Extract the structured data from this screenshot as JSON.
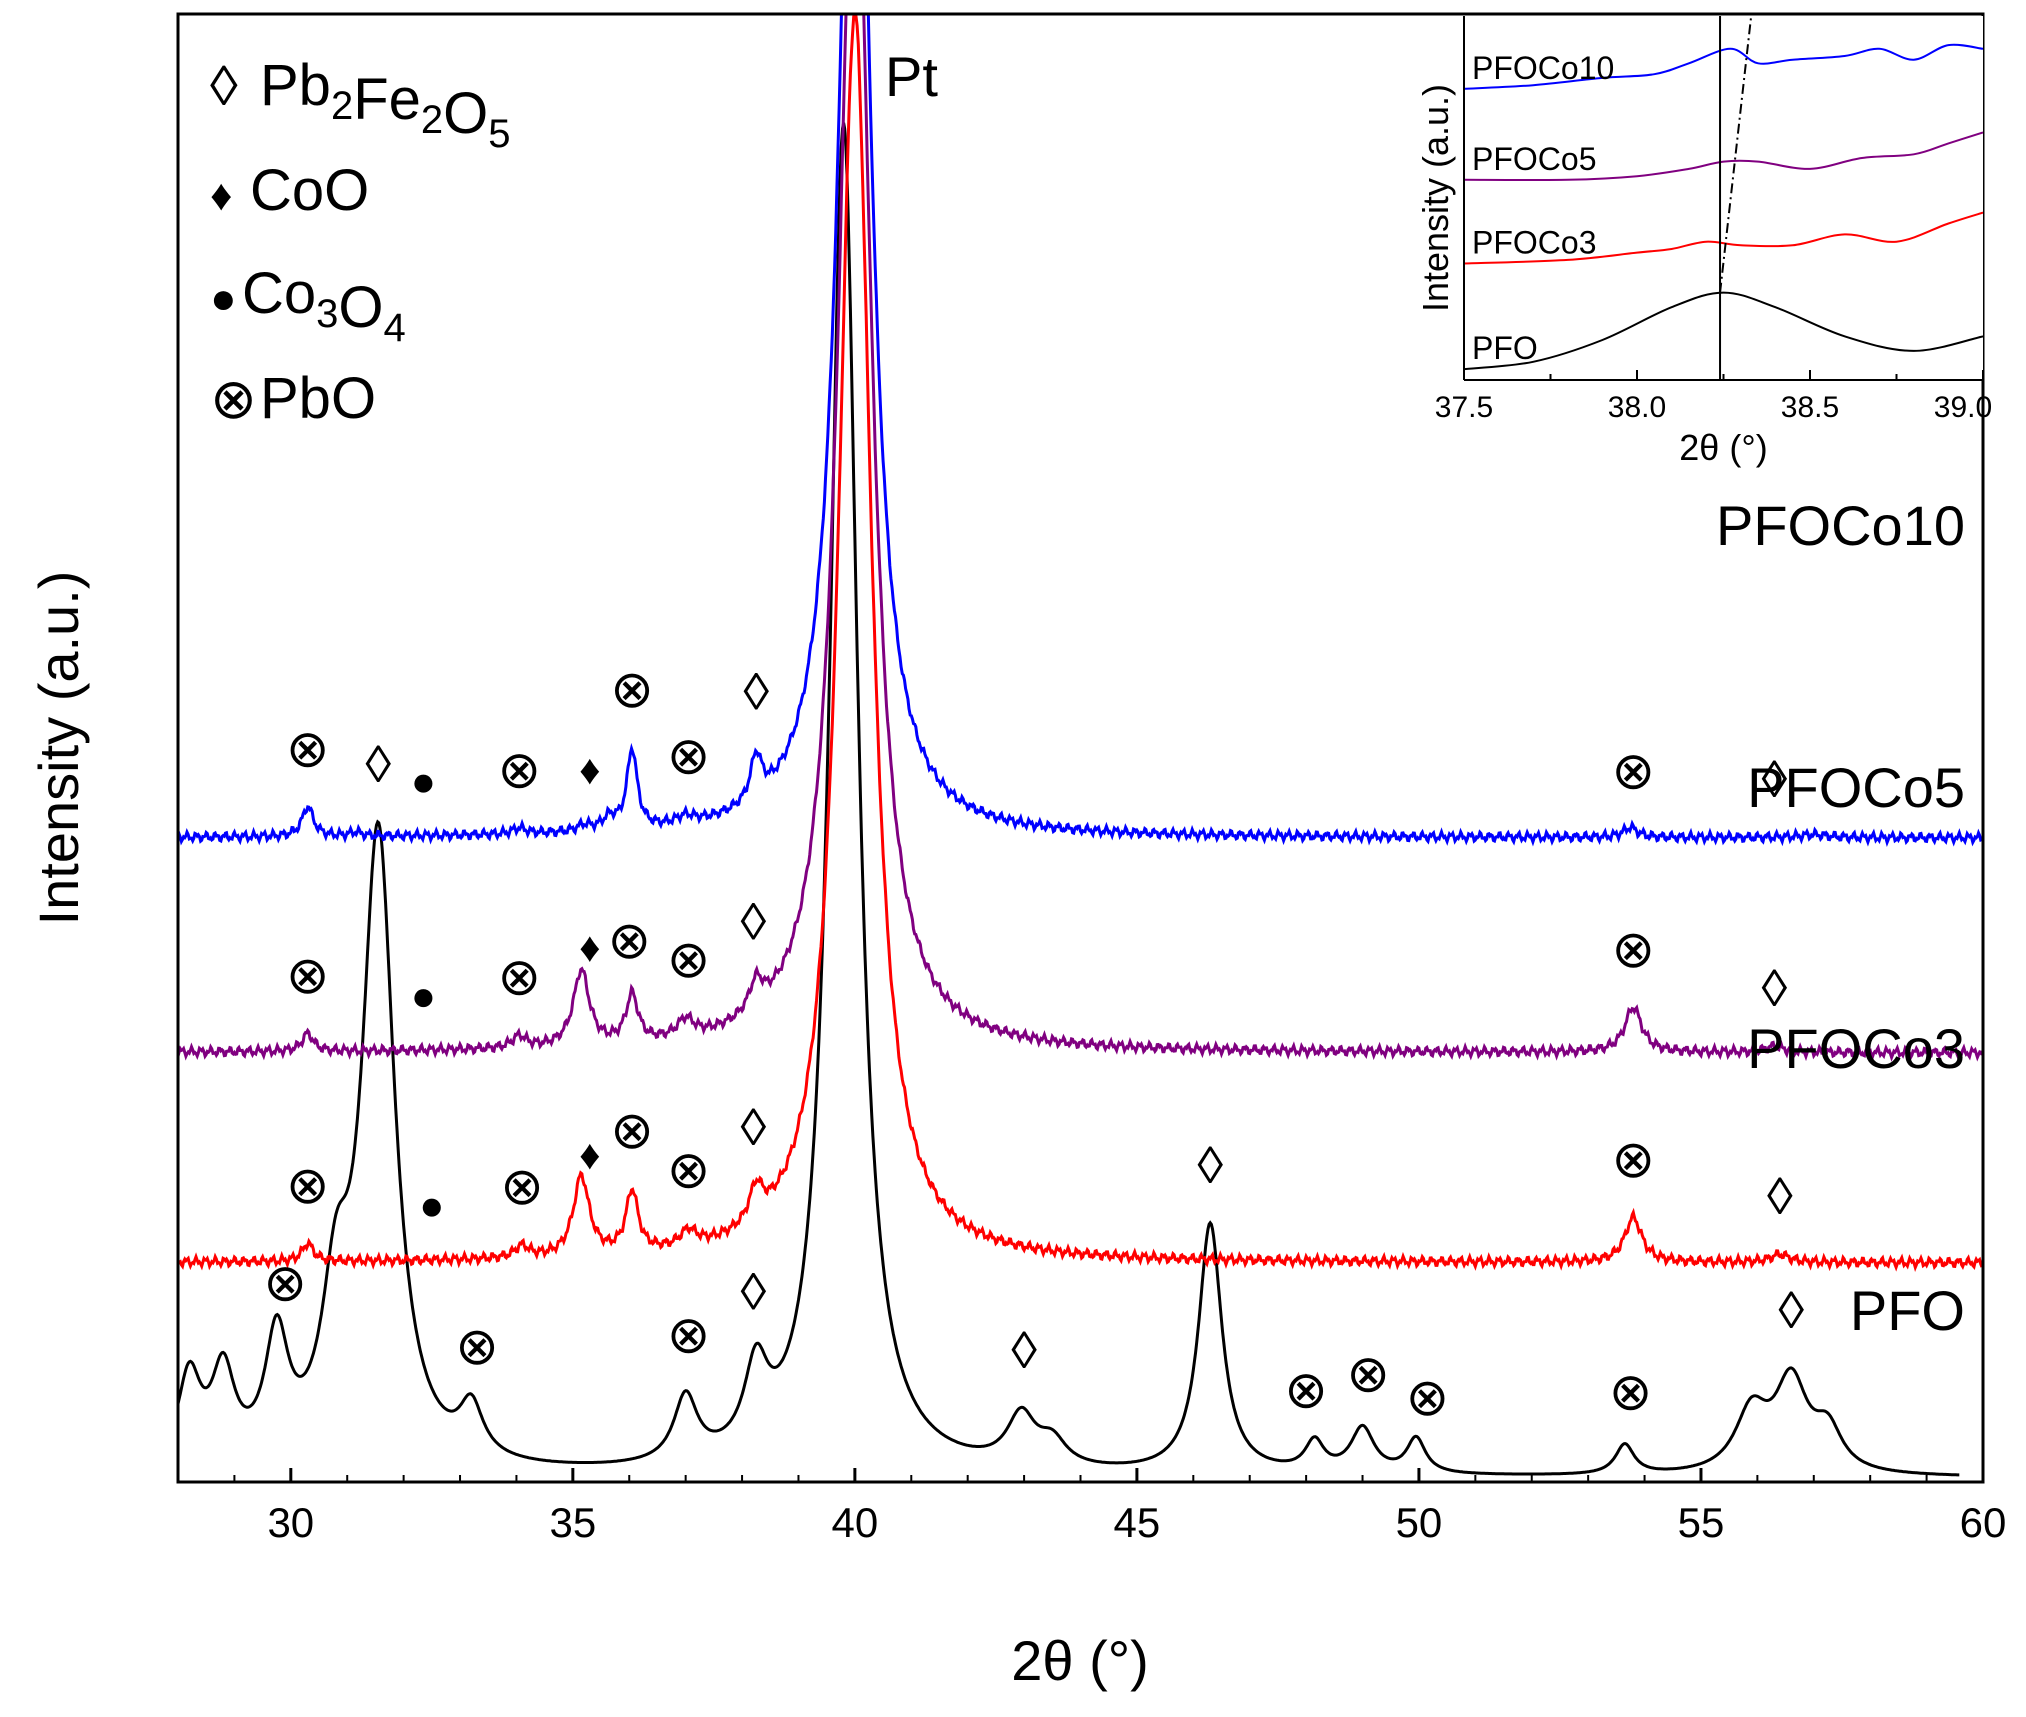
{
  "chart_data": {
    "type": "line",
    "title": "",
    "xlabel": "2θ (°)",
    "ylabel": "Intensity (a.u.)",
    "xlim": [
      28,
      60
    ],
    "x_ticks": [
      30,
      35,
      40,
      45,
      50,
      55,
      60
    ],
    "x_tick_labels": [
      "30",
      "35",
      "40",
      "45",
      "50",
      "55",
      "60"
    ],
    "colors": {
      "PFO": "#000000",
      "PFOCo3": "#ff0000",
      "PFOCo5": "#800080",
      "PFOCo10": "#0000ff"
    },
    "series": [
      {
        "name": "PFO",
        "baseline": 0.0,
        "peaks": [
          {
            "pos": 28.2,
            "h": 0.09,
            "w": 0.25
          },
          {
            "pos": 28.8,
            "h": 0.09,
            "w": 0.25
          },
          {
            "pos": 29.75,
            "h": 0.12,
            "w": 0.25
          },
          {
            "pos": 30.8,
            "h": 0.14,
            "w": 0.3
          },
          {
            "pos": 31.55,
            "h": 0.63,
            "w": 0.35
          },
          {
            "pos": 33.2,
            "h": 0.05,
            "w": 0.25
          },
          {
            "pos": 37.0,
            "h": 0.065,
            "w": 0.25
          },
          {
            "pos": 38.25,
            "h": 0.08,
            "w": 0.25
          },
          {
            "pos": 39.8,
            "h": 1.35,
            "w": 0.3
          },
          {
            "pos": 42.95,
            "h": 0.05,
            "w": 0.3
          },
          {
            "pos": 43.5,
            "h": 0.025,
            "w": 0.3
          },
          {
            "pos": 46.3,
            "h": 0.25,
            "w": 0.25
          },
          {
            "pos": 48.15,
            "h": 0.03,
            "w": 0.2
          },
          {
            "pos": 49.0,
            "h": 0.045,
            "w": 0.25
          },
          {
            "pos": 49.95,
            "h": 0.035,
            "w": 0.2
          },
          {
            "pos": 53.65,
            "h": 0.03,
            "w": 0.2
          },
          {
            "pos": 55.9,
            "h": 0.06,
            "w": 0.35
          },
          {
            "pos": 56.6,
            "h": 0.09,
            "w": 0.35
          },
          {
            "pos": 57.25,
            "h": 0.04,
            "w": 0.3
          }
        ]
      },
      {
        "name": "PFOCo3",
        "baseline": 0.215,
        "peaks": [
          {
            "pos": 30.3,
            "h": 0.018,
            "w": 0.12
          },
          {
            "pos": 34.1,
            "h": 0.012,
            "w": 0.15
          },
          {
            "pos": 35.15,
            "h": 0.08,
            "w": 0.17
          },
          {
            "pos": 36.05,
            "h": 0.062,
            "w": 0.13
          },
          {
            "pos": 37.05,
            "h": 0.016,
            "w": 0.18
          },
          {
            "pos": 38.25,
            "h": 0.035,
            "w": 0.15
          },
          {
            "pos": 40.0,
            "h": 1.25,
            "w": 0.35
          },
          {
            "pos": 53.8,
            "h": 0.045,
            "w": 0.18
          },
          {
            "pos": 56.4,
            "h": 0.008,
            "w": 0.2
          }
        ]
      },
      {
        "name": "PFOCo5",
        "baseline": 0.425,
        "peaks": [
          {
            "pos": 30.3,
            "h": 0.018,
            "w": 0.12
          },
          {
            "pos": 34.05,
            "h": 0.012,
            "w": 0.15
          },
          {
            "pos": 35.15,
            "h": 0.076,
            "w": 0.17
          },
          {
            "pos": 36.05,
            "h": 0.048,
            "w": 0.13
          },
          {
            "pos": 37.0,
            "h": 0.018,
            "w": 0.18
          },
          {
            "pos": 38.25,
            "h": 0.03,
            "w": 0.15
          },
          {
            "pos": 40.0,
            "h": 1.25,
            "w": 0.35
          },
          {
            "pos": 53.8,
            "h": 0.045,
            "w": 0.18
          },
          {
            "pos": 56.3,
            "h": 0.006,
            "w": 0.2
          }
        ]
      },
      {
        "name": "PFOCo10",
        "baseline": 0.64,
        "peaks": [
          {
            "pos": 30.3,
            "h": 0.03,
            "w": 0.12
          },
          {
            "pos": 31.15,
            "h": 0.004,
            "w": 0.12
          },
          {
            "pos": 34.05,
            "h": 0.006,
            "w": 0.15
          },
          {
            "pos": 35.2,
            "h": 0.006,
            "w": 0.15
          },
          {
            "pos": 35.65,
            "h": 0.012,
            "w": 0.15
          },
          {
            "pos": 36.05,
            "h": 0.08,
            "w": 0.11
          },
          {
            "pos": 37.0,
            "h": 0.008,
            "w": 0.2
          },
          {
            "pos": 38.25,
            "h": 0.045,
            "w": 0.12
          },
          {
            "pos": 40.0,
            "h": 1.25,
            "w": 0.33
          },
          {
            "pos": 53.75,
            "h": 0.01,
            "w": 0.15
          },
          {
            "pos": 57.0,
            "h": 0.003,
            "w": 0.3
          }
        ]
      }
    ],
    "series_labels": [
      {
        "name": "PFOCo10",
        "label": "PFOCo10"
      },
      {
        "name": "PFOCo5",
        "label": "PFOCo5"
      },
      {
        "name": "PFOCo3",
        "label": "PFOCo3"
      },
      {
        "name": "PFO",
        "label": "PFO"
      }
    ],
    "peak_annotation": "Pt",
    "legend": {
      "placement": "top-left",
      "entries": [
        {
          "symbol": "◊",
          "phase": "Pb2Fe2O5"
        },
        {
          "symbol": "♦",
          "phase": "CoO"
        },
        {
          "symbol": "●",
          "phase": "Co3O4"
        },
        {
          "symbol": "⊗",
          "phase": "PbO"
        }
      ]
    },
    "phase_markers": {
      "PFOCo10": [
        {
          "symbol": "⊗",
          "x": 30.3
        },
        {
          "symbol": "●",
          "x": 32.35
        },
        {
          "symbol": "⊗",
          "x": 34.05
        },
        {
          "symbol": "♦",
          "x": 35.3
        },
        {
          "symbol": "⊗",
          "x": 36.05
        },
        {
          "symbol": "⊗",
          "x": 37.05
        },
        {
          "symbol": "◊",
          "x": 38.25
        },
        {
          "symbol": "⊗",
          "x": 53.8
        },
        {
          "symbol": "◊",
          "x": 56.3
        }
      ],
      "PFOCo5": [
        {
          "symbol": "⊗",
          "x": 30.3
        },
        {
          "symbol": "●",
          "x": 32.35
        },
        {
          "symbol": "⊗",
          "x": 34.05
        },
        {
          "symbol": "♦",
          "x": 35.3
        },
        {
          "symbol": "⊗",
          "x": 36.0
        },
        {
          "symbol": "⊗",
          "x": 37.05
        },
        {
          "symbol": "◊",
          "x": 38.2
        },
        {
          "symbol": "⊗",
          "x": 53.8
        },
        {
          "symbol": "◊",
          "x": 56.3
        }
      ],
      "PFOCo3": [
        {
          "symbol": "⊗",
          "x": 30.3
        },
        {
          "symbol": "●",
          "x": 32.5
        },
        {
          "symbol": "⊗",
          "x": 34.1
        },
        {
          "symbol": "♦",
          "x": 35.3
        },
        {
          "symbol": "⊗",
          "x": 36.05
        },
        {
          "symbol": "⊗",
          "x": 37.05
        },
        {
          "symbol": "◊",
          "x": 38.2
        },
        {
          "symbol": "⊗",
          "x": 53.8
        },
        {
          "symbol": "◊",
          "x": 56.4
        }
      ],
      "PFO": [
        {
          "symbol": "⊗",
          "x": 29.9
        },
        {
          "symbol": "◊",
          "x": 31.55
        },
        {
          "symbol": "⊗",
          "x": 33.3
        },
        {
          "symbol": "⊗",
          "x": 37.05
        },
        {
          "symbol": "◊",
          "x": 38.2
        },
        {
          "symbol": "◊",
          "x": 43.0
        },
        {
          "symbol": "◊",
          "x": 46.3
        },
        {
          "symbol": "⊗",
          "x": 48.0
        },
        {
          "symbol": "⊗",
          "x": 49.1
        },
        {
          "symbol": "⊗",
          "x": 50.15
        },
        {
          "symbol": "⊗",
          "x": 53.75
        },
        {
          "symbol": "◊",
          "x": 56.6
        }
      ]
    },
    "inset": {
      "type": "line",
      "xlabel": "2θ (°)",
      "ylabel": "Intensity (a.u.)",
      "xlim": [
        37.5,
        39.0
      ],
      "x_ticks": [
        37.5,
        38.0,
        38.5,
        39.0
      ],
      "x_tick_labels": [
        "37.5",
        "38.0",
        "38.5",
        "39.0"
      ],
      "reference_line_x": 38.24,
      "dashed_line_x": [
        38.24,
        38.33
      ],
      "series": [
        {
          "name": "PFO",
          "label": "PFO",
          "x": [
            37.5,
            37.7,
            37.9,
            38.1,
            38.25,
            38.4,
            38.6,
            38.8,
            39.0
          ],
          "y": [
            0.03,
            0.05,
            0.11,
            0.2,
            0.24,
            0.2,
            0.12,
            0.08,
            0.12
          ]
        },
        {
          "name": "PFOCo3",
          "label": "PFOCo3",
          "x": [
            37.5,
            37.8,
            38.0,
            38.1,
            38.2,
            38.3,
            38.45,
            38.6,
            38.75,
            38.9,
            39.0
          ],
          "y": [
            0.32,
            0.33,
            0.35,
            0.36,
            0.38,
            0.37,
            0.37,
            0.4,
            0.38,
            0.43,
            0.46
          ]
        },
        {
          "name": "PFOCo5",
          "label": "PFOCo5",
          "x": [
            37.5,
            37.8,
            38.0,
            38.15,
            38.25,
            38.35,
            38.5,
            38.65,
            38.8,
            38.9,
            39.0
          ],
          "y": [
            0.55,
            0.55,
            0.56,
            0.58,
            0.6,
            0.6,
            0.58,
            0.61,
            0.62,
            0.65,
            0.68
          ]
        },
        {
          "name": "PFOCo10",
          "label": "PFOCo10",
          "x": [
            37.5,
            37.7,
            37.9,
            38.05,
            38.15,
            38.27,
            38.35,
            38.45,
            38.6,
            38.7,
            38.8,
            38.9,
            39.0
          ],
          "y": [
            0.8,
            0.81,
            0.83,
            0.84,
            0.87,
            0.91,
            0.87,
            0.88,
            0.89,
            0.91,
            0.88,
            0.92,
            0.91
          ]
        }
      ]
    }
  }
}
